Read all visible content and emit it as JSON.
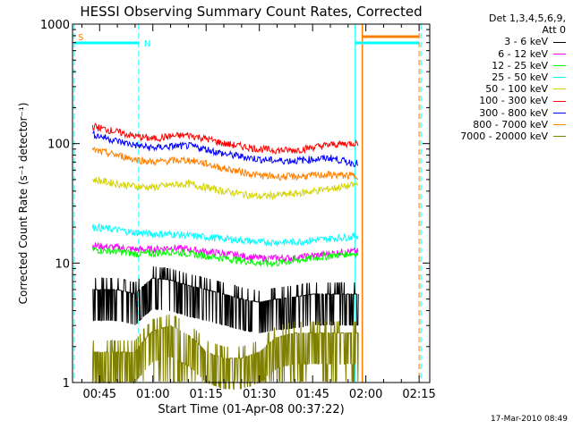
{
  "chart_data": {
    "type": "line",
    "title": "HESSI Observing Summary Count Rates, Corrected",
    "xlabel": "Start Time (01-Apr-08 00:37:22)",
    "ylabel": "Corrected Count Rate (s⁻¹ detector⁻¹)",
    "yscale": "log",
    "ylim": [
      1,
      1000
    ],
    "xlim": [
      "00:37:22",
      "02:18:00"
    ],
    "grid": false,
    "legend_position": "right",
    "legend_header": [
      "Det 1,3,4,5,6,9,",
      "Att 0"
    ],
    "ytick_labels": [
      "1",
      "10",
      "100",
      "1000"
    ],
    "xtick_labels": [
      "00:45",
      "01:00",
      "01:15",
      "01:30",
      "01:45",
      "02:00",
      "02:15"
    ],
    "annotations": [
      {
        "text": "S",
        "color": "#ff8000"
      },
      {
        "text": "N",
        "color": "#00ffff"
      }
    ],
    "series": [
      {
        "name": "3 - 6 keV",
        "color": "#000000",
        "x": [
          "00:43",
          "00:50",
          "00:55",
          "01:00",
          "01:05",
          "01:10",
          "01:15",
          "01:20",
          "01:25",
          "01:30",
          "01:35",
          "01:40",
          "01:45",
          "01:50",
          "01:55",
          "01:58"
        ],
        "y": [
          6,
          6,
          5.5,
          7.5,
          7.2,
          6.5,
          6,
          5.5,
          5,
          4.7,
          5,
          5.2,
          5.5,
          5.5,
          5.5,
          5.5
        ]
      },
      {
        "name": "6 - 12 keV",
        "color": "#ff00ff",
        "x": [
          "00:43",
          "00:50",
          "00:55",
          "01:00",
          "01:05",
          "01:10",
          "01:15",
          "01:20",
          "01:25",
          "01:30",
          "01:35",
          "01:40",
          "01:45",
          "01:50",
          "01:55",
          "01:58"
        ],
        "y": [
          14,
          13.5,
          13,
          13,
          13.5,
          13,
          12.5,
          12,
          11.5,
          11,
          11,
          11,
          11.5,
          12,
          12.5,
          12.5
        ]
      },
      {
        "name": "12 - 25 keV",
        "color": "#00ff00",
        "x": [
          "00:43",
          "00:50",
          "00:55",
          "01:00",
          "01:05",
          "01:10",
          "01:15",
          "01:20",
          "01:25",
          "01:30",
          "01:35",
          "01:40",
          "01:45",
          "01:50",
          "01:55",
          "01:58"
        ],
        "y": [
          13,
          12.5,
          12,
          12,
          12.5,
          12,
          11.5,
          11,
          10.5,
          10,
          10,
          10.5,
          11,
          11.5,
          12,
          12
        ]
      },
      {
        "name": "25 - 50 keV",
        "color": "#00ffff",
        "x": [
          "00:43",
          "00:50",
          "00:55",
          "01:00",
          "01:05",
          "01:10",
          "01:15",
          "01:20",
          "01:25",
          "01:30",
          "01:35",
          "01:40",
          "01:45",
          "01:50",
          "01:55",
          "01:58"
        ],
        "y": [
          20,
          19,
          18,
          17.5,
          17.5,
          17,
          16.5,
          16,
          15.5,
          15,
          15,
          15,
          15.5,
          16,
          16.5,
          17
        ]
      },
      {
        "name": "50 - 100 keV",
        "color": "#d4d400",
        "x": [
          "00:43",
          "00:50",
          "00:55",
          "01:00",
          "01:05",
          "01:10",
          "01:15",
          "01:20",
          "01:25",
          "01:30",
          "01:35",
          "01:40",
          "01:45",
          "01:50",
          "01:55",
          "01:58"
        ],
        "y": [
          50,
          46,
          44,
          43,
          45,
          46,
          43,
          40,
          38,
          36,
          37,
          38,
          40,
          42,
          44,
          46
        ]
      },
      {
        "name": "100 - 300 keV",
        "color": "#ff0000",
        "x": [
          "00:43",
          "00:50",
          "00:55",
          "01:00",
          "01:05",
          "01:10",
          "01:15",
          "01:20",
          "01:25",
          "01:30",
          "01:35",
          "01:40",
          "01:45",
          "01:50",
          "01:55",
          "01:58"
        ],
        "y": [
          140,
          125,
          115,
          110,
          115,
          118,
          110,
          100,
          95,
          90,
          88,
          88,
          93,
          98,
          100,
          102
        ]
      },
      {
        "name": "300 - 800 keV",
        "color": "#0000ff",
        "x": [
          "00:43",
          "00:50",
          "00:55",
          "01:00",
          "01:05",
          "01:10",
          "01:15",
          "01:20",
          "01:25",
          "01:30",
          "01:35",
          "01:40",
          "01:45",
          "01:50",
          "01:55",
          "01:58"
        ],
        "y": [
          120,
          105,
          97,
          92,
          95,
          96,
          90,
          82,
          78,
          74,
          72,
          72,
          74,
          76,
          70,
          68
        ]
      },
      {
        "name": "800 - 7000 keV",
        "color": "#ff8000",
        "x": [
          "00:43",
          "00:50",
          "00:55",
          "01:00",
          "01:05",
          "01:10",
          "01:15",
          "01:20",
          "01:25",
          "01:30",
          "01:35",
          "01:40",
          "01:45",
          "01:50",
          "01:55",
          "01:58"
        ],
        "y": [
          88,
          80,
          74,
          70,
          72,
          73,
          68,
          62,
          58,
          54,
          53,
          53,
          54,
          55,
          54,
          54
        ]
      },
      {
        "name": "7000 - 20000 keV",
        "color": "#808000",
        "x": [
          "00:43",
          "00:50",
          "00:55",
          "01:00",
          "01:05",
          "01:10",
          "01:15",
          "01:20",
          "01:25",
          "01:30",
          "01:35",
          "01:40",
          "01:45",
          "01:50",
          "01:55",
          "01:58"
        ],
        "y": [
          1.8,
          1.8,
          1.8,
          2.7,
          3,
          2.5,
          1.8,
          1.6,
          1.6,
          1.8,
          2.4,
          2.6,
          2.6,
          2.6,
          2.6,
          2.6
        ]
      }
    ]
  },
  "footer": {
    "timestamp": "17-Mar-2010 08:49"
  }
}
